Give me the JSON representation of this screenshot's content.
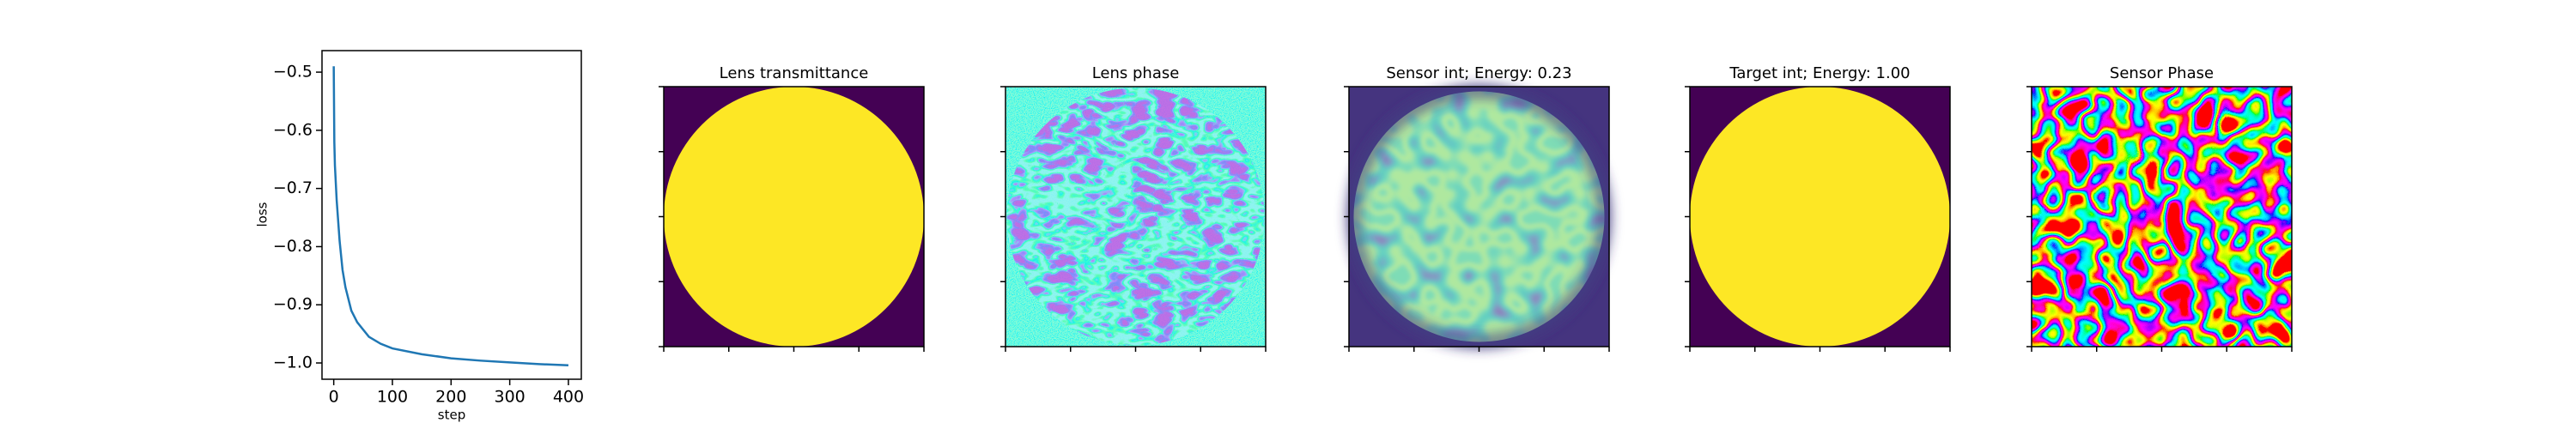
{
  "chart_data": {
    "type": "line",
    "xlabel": "step",
    "ylabel": "loss",
    "color": "#1f77b4",
    "x": [
      0,
      1,
      2,
      5,
      10,
      15,
      20,
      30,
      40,
      60,
      80,
      100,
      150,
      200,
      250,
      300,
      350,
      400
    ],
    "values": [
      -0.49,
      -0.62,
      -0.66,
      -0.72,
      -0.79,
      -0.84,
      -0.87,
      -0.91,
      -0.93,
      -0.955,
      -0.967,
      -0.975,
      -0.985,
      -0.992,
      -0.996,
      -0.999,
      -1.002,
      -1.004
    ],
    "xlim": [
      -20,
      422
    ],
    "ylim": [
      -1.028,
      -0.463
    ],
    "xticks": [
      0,
      100,
      200,
      300,
      400
    ],
    "yticks": [
      {
        "value": -0.5,
        "label": "−0.5"
      },
      {
        "value": -0.6,
        "label": "−0.6"
      },
      {
        "value": -0.7,
        "label": "−0.7"
      },
      {
        "value": -0.8,
        "label": "−0.8"
      },
      {
        "value": -0.9,
        "label": "−0.9"
      },
      {
        "value": -1.0,
        "label": "−1.0"
      }
    ]
  },
  "panels": [
    {
      "title": "Lens transmittance"
    },
    {
      "title": "Lens phase"
    },
    {
      "title": "Sensor int; Energy: 0.23"
    },
    {
      "title": "Target int; Energy: 1.00"
    },
    {
      "title": "Sensor Phase"
    }
  ]
}
